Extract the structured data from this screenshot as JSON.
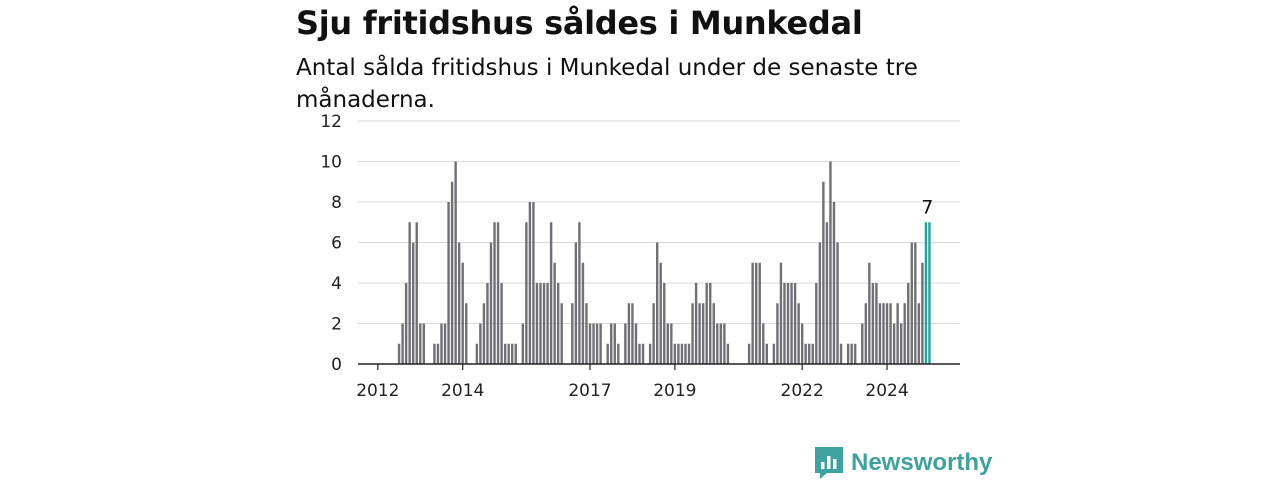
{
  "title": "Sju fritidshus såldes i Munkedal",
  "subtitle": "Antal sålda fritidshus i Munkedal under de senaste tre månaderna.",
  "brand": {
    "name": "Newsworthy",
    "logo_icon": "bar-chart-icon",
    "color": "#3ea39e"
  },
  "chart_data": {
    "type": "bar",
    "title": "Sju fritidshus såldes i Munkedal",
    "subtitle": "Antal sålda fritidshus i Munkedal under de senaste tre månaderna.",
    "xlabel": "",
    "ylabel": "",
    "ylim": [
      0,
      12
    ],
    "yticks": [
      "0",
      "2",
      "4",
      "6",
      "8",
      "10",
      "12"
    ],
    "xticks": [
      "2012",
      "2014",
      "2017",
      "2019",
      "2022",
      "2024"
    ],
    "grid": true,
    "legend": "none",
    "bar_color": "#707075",
    "highlight_color": "#25a49a",
    "highlight_label": "7",
    "highlight_count": 2,
    "values": [
      0,
      0,
      0,
      0,
      0,
      0,
      0,
      0,
      0,
      0,
      1,
      2,
      4,
      7,
      6,
      7,
      2,
      2,
      0,
      0,
      1,
      1,
      2,
      2,
      8,
      9,
      10,
      6,
      5,
      3,
      0,
      0,
      1,
      2,
      3,
      4,
      6,
      7,
      7,
      4,
      1,
      1,
      1,
      1,
      0,
      2,
      7,
      8,
      8,
      4,
      4,
      4,
      4,
      7,
      5,
      4,
      3,
      0,
      0,
      3,
      6,
      7,
      5,
      3,
      2,
      2,
      2,
      2,
      0,
      1,
      2,
      2,
      1,
      0,
      2,
      3,
      3,
      2,
      1,
      1,
      0,
      1,
      3,
      6,
      5,
      4,
      2,
      2,
      1,
      1,
      1,
      1,
      1,
      3,
      4,
      3,
      3,
      4,
      4,
      3,
      2,
      2,
      2,
      1,
      0,
      0,
      0,
      0,
      0,
      1,
      5,
      5,
      5,
      2,
      1,
      0,
      1,
      3,
      5,
      4,
      4,
      4,
      4,
      3,
      2,
      1,
      1,
      1,
      4,
      6,
      9,
      7,
      10,
      8,
      6,
      1,
      0,
      1,
      1,
      1,
      0,
      2,
      3,
      5,
      4,
      4,
      3,
      3,
      3,
      3,
      2,
      3,
      2,
      3,
      4,
      6,
      6,
      3,
      5,
      7,
      7
    ]
  }
}
